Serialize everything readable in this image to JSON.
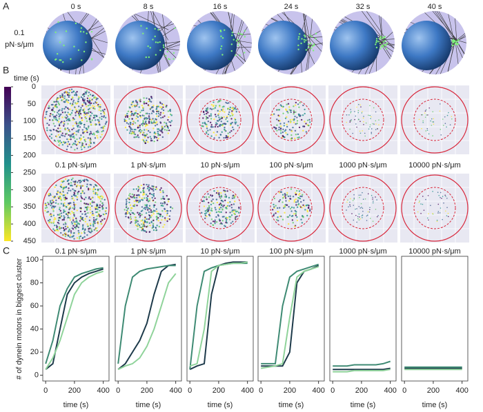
{
  "panel_a": {
    "label": "A",
    "row_label": [
      "0.1",
      "pN·s/μm"
    ],
    "times": [
      "0 s",
      "8 s",
      "16 s",
      "24 s",
      "32 s",
      "40 s"
    ]
  },
  "panel_b": {
    "label": "B",
    "colorbar": {
      "title": "time (s)",
      "ylim": [
        0,
        450
      ],
      "ticks": [
        0,
        50,
        100,
        150,
        200,
        250,
        300,
        350,
        400,
        450
      ]
    },
    "viscosities": [
      "0.1 pN·s/μm",
      "1 pN·s/μm",
      "10 pN·s/μm",
      "100 pN·s/μm",
      "1000 pN·s/μm",
      "10000 pN·s/μm"
    ]
  },
  "panel_c": {
    "label": "C",
    "type": "line",
    "ylabel": "# of dynein motors in biggest cluster",
    "xlabel": "time (s)",
    "xlim": [
      -20,
      440
    ],
    "ylim": [
      -5,
      103
    ],
    "xticks": [
      0,
      200,
      400
    ],
    "yticks": [
      0,
      20,
      40,
      60,
      80,
      100
    ],
    "x": [
      0,
      50,
      100,
      150,
      200,
      250,
      300,
      350,
      400
    ],
    "panels": [
      {
        "title": "0.1 pN·s/μm",
        "series": [
          {
            "color": "#1d3a4a",
            "values": [
              5,
              10,
              40,
              70,
              80,
              85,
              88,
              90,
              92
            ]
          },
          {
            "color": "#3e8a73",
            "values": [
              10,
              30,
              60,
              75,
              85,
              88,
              90,
              92,
              93
            ]
          },
          {
            "color": "#8fd39a",
            "values": [
              5,
              15,
              30,
              50,
              70,
              80,
              85,
              88,
              90
            ]
          }
        ]
      },
      {
        "title": "1 pN·s/μm",
        "series": [
          {
            "color": "#1d3a4a",
            "values": [
              5,
              10,
              20,
              30,
              45,
              70,
              90,
              95,
              96
            ]
          },
          {
            "color": "#3e8a73",
            "values": [
              10,
              60,
              85,
              90,
              92,
              93,
              94,
              95,
              95
            ]
          },
          {
            "color": "#8fd39a",
            "values": [
              5,
              8,
              10,
              15,
              25,
              40,
              60,
              80,
              88
            ]
          }
        ]
      },
      {
        "title": "10 pN·s/μm",
        "series": [
          {
            "color": "#1d3a4a",
            "values": [
              5,
              8,
              10,
              70,
              95,
              97,
              98,
              98,
              98
            ]
          },
          {
            "color": "#3e8a73",
            "values": [
              5,
              60,
              90,
              93,
              95,
              96,
              97,
              97,
              97
            ]
          },
          {
            "color": "#8fd39a",
            "values": [
              8,
              10,
              40,
              90,
              95,
              96,
              97,
              97,
              98
            ]
          }
        ]
      },
      {
        "title": "100 pN·s/μm",
        "series": [
          {
            "color": "#1d3a4a",
            "values": [
              8,
              8,
              8,
              8,
              20,
              80,
              90,
              92,
              95
            ]
          },
          {
            "color": "#3e8a73",
            "values": [
              10,
              10,
              10,
              60,
              85,
              90,
              92,
              94,
              96
            ]
          },
          {
            "color": "#8fd39a",
            "values": [
              6,
              7,
              8,
              10,
              50,
              85,
              90,
              92,
              94
            ]
          }
        ]
      },
      {
        "title": "1000 pN·s/μm",
        "series": [
          {
            "color": "#1d3a4a",
            "values": [
              5,
              5,
              5,
              5,
              5,
              5,
              5,
              5,
              6
            ]
          },
          {
            "color": "#3e8a73",
            "values": [
              8,
              8,
              8,
              9,
              9,
              9,
              9,
              10,
              12
            ]
          },
          {
            "color": "#8fd39a",
            "values": [
              3,
              3,
              3,
              4,
              4,
              4,
              4,
              4,
              5
            ]
          }
        ]
      },
      {
        "title": "10000 pN·s/μm",
        "series": [
          {
            "color": "#1d3a4a",
            "values": [
              6,
              6,
              6,
              6,
              6,
              6,
              6,
              6,
              6
            ]
          },
          {
            "color": "#3e8a73",
            "values": [
              7,
              7,
              7,
              7,
              7,
              7,
              7,
              7,
              7
            ]
          },
          {
            "color": "#8fd39a",
            "values": [
              5,
              5,
              5,
              5,
              5,
              5,
              5,
              5,
              5
            ]
          }
        ]
      }
    ]
  }
}
